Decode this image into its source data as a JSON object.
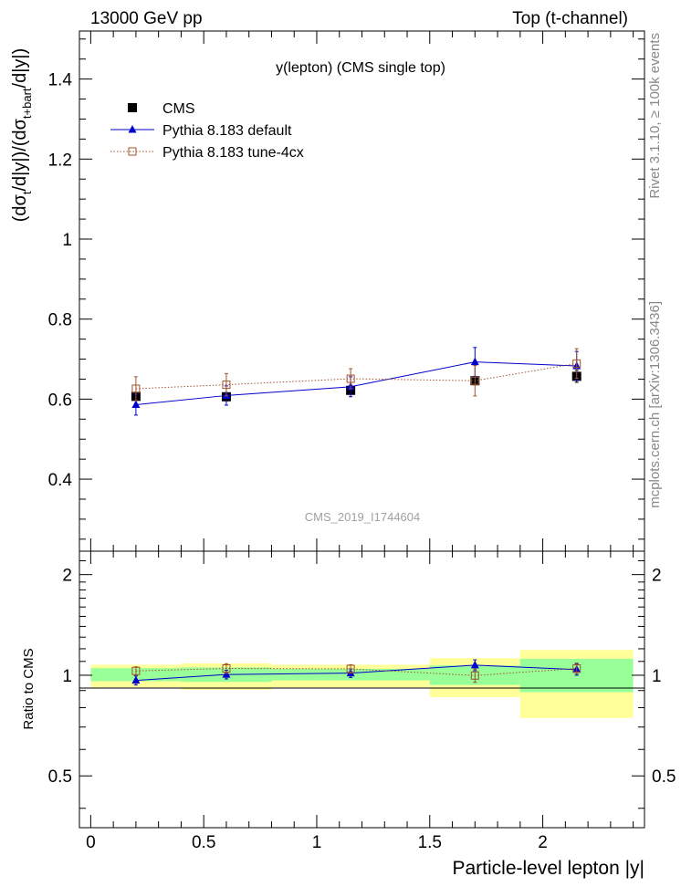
{
  "header": {
    "left": "13000 GeV pp",
    "right": "Top (t-channel)"
  },
  "side_labels": {
    "rivet": "Rivet 3.1.10, ≥ 100k events",
    "mcplots": "mcplots.cern.ch [arXiv:1306.3436]"
  },
  "colors": {
    "cms": "#000000",
    "default": "#0000cc",
    "tune": "#a0522d",
    "band_inner": "#99ff99",
    "band_outer": "#ffff99"
  },
  "chart_data": [
    {
      "type": "scatter",
      "panel": "main",
      "title": "y(lepton) (CMS single top)",
      "watermark": "CMS_2019_I1744604",
      "ylabel": "(dσt/d|y|)/(dσt+bart/d|y|)",
      "ylim": [
        0.22,
        1.52
      ],
      "xlim": [
        -0.05,
        2.45
      ],
      "y_ticks": [
        {
          "v": 0.4,
          "label": "0.4"
        },
        {
          "v": 0.6,
          "label": "0.6"
        },
        {
          "v": 0.8,
          "label": "0.8"
        },
        {
          "v": 1.0,
          "label": "1"
        },
        {
          "v": 1.2,
          "label": "1.2"
        },
        {
          "v": 1.4,
          "label": "1.4"
        }
      ],
      "legend": [
        {
          "key": "cms",
          "label": "CMS"
        },
        {
          "key": "default",
          "label": "Pythia 8.183 default"
        },
        {
          "key": "tune",
          "label": "Pythia 8.183 tune-4cx"
        }
      ],
      "series": [
        {
          "key": "cms",
          "name": "CMS",
          "x": [
            0.2,
            0.6,
            1.15,
            1.7,
            2.15
          ],
          "y": [
            0.607,
            0.606,
            0.622,
            0.646,
            0.657
          ],
          "yerr": [
            0.01,
            0.01,
            0.01,
            0.01,
            0.015
          ],
          "marker": "square-filled"
        },
        {
          "key": "default",
          "name": "Pythia 8.183 default",
          "x": [
            0.2,
            0.6,
            1.15,
            1.7,
            2.15
          ],
          "y": [
            0.586,
            0.609,
            0.631,
            0.693,
            0.683
          ],
          "yerr": [
            0.026,
            0.024,
            0.025,
            0.036,
            0.036
          ],
          "marker": "triangle"
        },
        {
          "key": "tune",
          "name": "Pythia 8.183 tune-4cx",
          "x": [
            0.2,
            0.6,
            1.15,
            1.7,
            2.15
          ],
          "y": [
            0.626,
            0.636,
            0.651,
            0.646,
            0.689
          ],
          "yerr": [
            0.03,
            0.028,
            0.025,
            0.038,
            0.037
          ],
          "marker": "square-open"
        }
      ]
    },
    {
      "type": "scatter",
      "panel": "ratio",
      "ylabel": "Ratio to CMS",
      "xlabel": "Particle-level lepton |y|",
      "ylim": [
        0.35,
        2.35
      ],
      "xlim": [
        -0.05,
        2.45
      ],
      "x_ticks": [
        {
          "v": 0,
          "label": "0"
        },
        {
          "v": 0.5,
          "label": "0.5"
        },
        {
          "v": 1,
          "label": "1"
        },
        {
          "v": 1.5,
          "label": "1.5"
        },
        {
          "v": 2,
          "label": "2"
        }
      ],
      "y_ticks": [
        {
          "v": 0.5,
          "label": "0.5"
        },
        {
          "v": 1,
          "label": "1"
        },
        {
          "v": 2,
          "label": "2"
        }
      ],
      "bands": [
        {
          "x0": 0.0,
          "x1": 0.4,
          "inner": [
            0.96,
            1.05
          ],
          "outer": [
            0.92,
            1.075
          ]
        },
        {
          "x0": 0.4,
          "x1": 0.8,
          "inner": [
            0.955,
            1.055
          ],
          "outer": [
            0.905,
            1.085
          ]
        },
        {
          "x0": 0.8,
          "x1": 1.5,
          "inner": [
            0.965,
            1.045
          ],
          "outer": [
            0.92,
            1.075
          ]
        },
        {
          "x0": 1.5,
          "x1": 1.9,
          "inner": [
            0.935,
            1.07
          ],
          "outer": [
            0.86,
            1.125
          ]
        },
        {
          "x0": 1.9,
          "x1": 2.4,
          "inner": [
            0.89,
            1.12
          ],
          "outer": [
            0.745,
            1.19
          ]
        }
      ],
      "series": [
        {
          "key": "default",
          "name": "Pythia 8.183 default",
          "x": [
            0.2,
            0.6,
            1.15,
            1.7,
            2.15
          ],
          "y": [
            0.965,
            1.005,
            1.015,
            1.072,
            1.04
          ],
          "yerr": [
            0.03,
            0.03,
            0.03,
            0.04,
            0.04
          ],
          "marker": "triangle"
        },
        {
          "key": "tune",
          "name": "Pythia 8.183 tune-4cx",
          "x": [
            0.2,
            0.6,
            1.15,
            1.7,
            2.15
          ],
          "y": [
            1.03,
            1.048,
            1.045,
            0.998,
            1.048
          ],
          "yerr": [
            0.03,
            0.035,
            0.03,
            0.045,
            0.04
          ],
          "marker": "square-open"
        }
      ]
    }
  ]
}
